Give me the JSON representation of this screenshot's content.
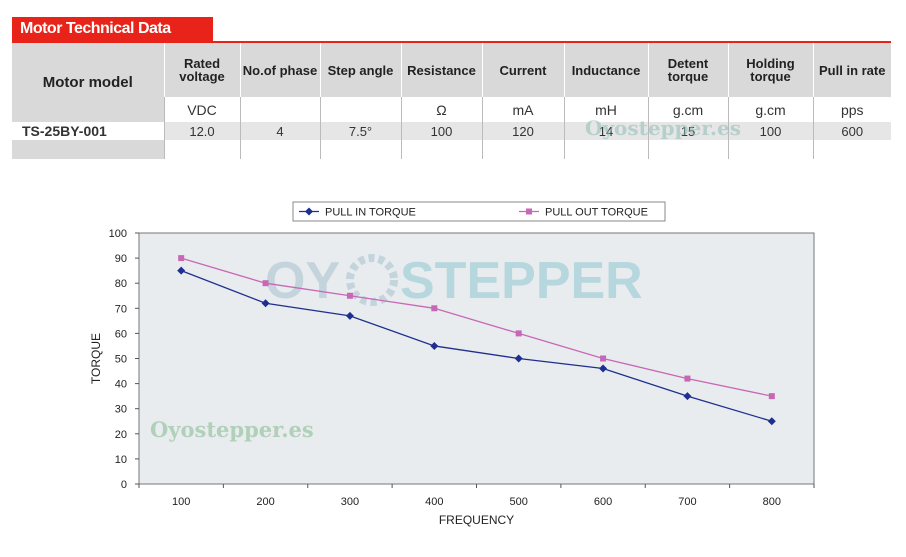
{
  "header": {
    "title": "Motor Technical Data"
  },
  "table": {
    "model_header": "Motor model",
    "columns": [
      {
        "label": "Rated voltage",
        "unit": "VDC"
      },
      {
        "label": "No.of phase",
        "unit": ""
      },
      {
        "label": "Step angle",
        "unit": ""
      },
      {
        "label": "Resistance",
        "unit": "Ω"
      },
      {
        "label": "Current",
        "unit": "mA"
      },
      {
        "label": "Inductance",
        "unit": "mH"
      },
      {
        "label": "Detent torque",
        "unit": "g.cm"
      },
      {
        "label": "Holding torque",
        "unit": "g.cm"
      },
      {
        "label": "Pull in rate",
        "unit": "pps"
      }
    ],
    "rows": [
      {
        "model": "TS-25BY-001",
        "values": [
          "12.0",
          "4",
          "7.5°",
          "100",
          "120",
          "14",
          "15",
          "100",
          "600"
        ]
      }
    ]
  },
  "watermark": {
    "text": "Oyostepper.es",
    "logo_left": "OY",
    "logo_right": "STEPPER"
  },
  "chart_data": {
    "type": "line",
    "categories": [
      "100",
      "200",
      "300",
      "400",
      "500",
      "600",
      "700",
      "800"
    ],
    "series": [
      {
        "name": "PULL IN TORQUE",
        "color": "#1f2f8f",
        "marker": "diamond",
        "values": [
          85,
          72,
          67,
          55,
          50,
          46,
          35,
          25
        ]
      },
      {
        "name": "PULL OUT TORQUE",
        "color": "#c867b5",
        "marker": "square",
        "values": [
          90,
          80,
          75,
          70,
          60,
          50,
          42,
          35
        ]
      }
    ],
    "xlabel": "FREQUENCY",
    "ylabel": "TORQUE",
    "ylim": [
      0,
      100
    ],
    "yticks": [
      0,
      10,
      20,
      30,
      40,
      50,
      60,
      70,
      80,
      90,
      100
    ],
    "grid": false,
    "plot_background": "#e8ecee",
    "legend": "top"
  }
}
